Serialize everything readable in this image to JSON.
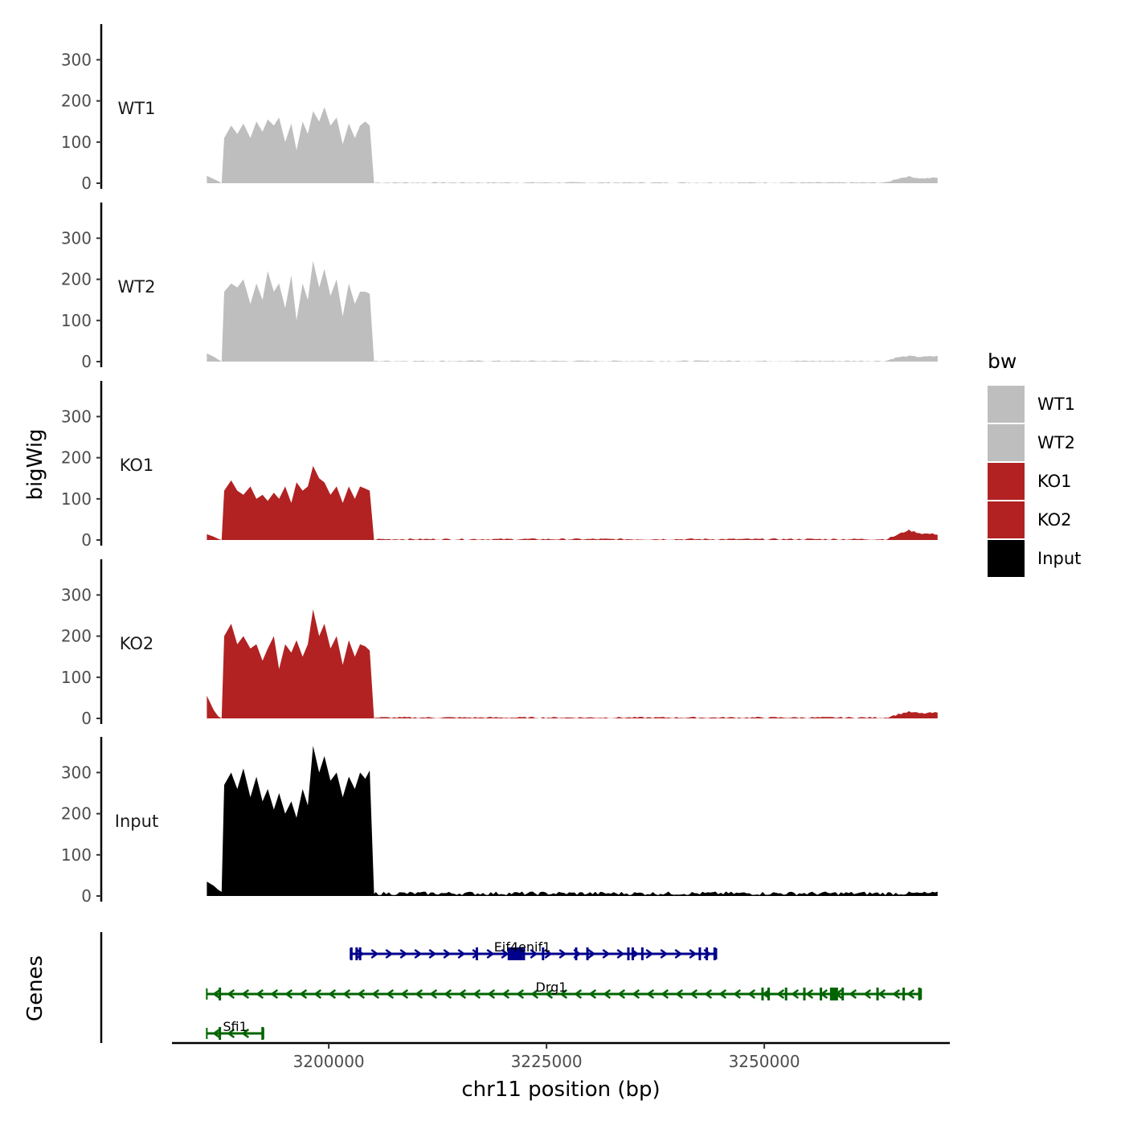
{
  "chart_data": {
    "type": "area",
    "title": "",
    "xlabel": "chr11 position (bp)",
    "ylabel_tracks": "bigWig",
    "ylabel_genes": "Genes",
    "xlim": [
      3182000,
      3271000
    ],
    "ylim": [
      0,
      380
    ],
    "y_ticks": [
      0,
      100,
      200,
      300
    ],
    "x_ticks": [
      3200000,
      3225000,
      3250000
    ],
    "x_tick_labels": [
      "3200000",
      "3225000",
      "3250000"
    ],
    "legend": {
      "title": "bw",
      "position": "right",
      "entries": [
        {
          "name": "WT1",
          "color": "#bebebe"
        },
        {
          "name": "WT2",
          "color": "#bebebe"
        },
        {
          "name": "KO1",
          "color": "#b22222"
        },
        {
          "name": "KO2",
          "color": "#b22222"
        },
        {
          "name": "Input",
          "color": "#000000"
        }
      ]
    },
    "series": [
      {
        "name": "WT1",
        "color": "#bebebe",
        "points": [
          [
            3186000,
            18
          ],
          [
            3186800,
            10
          ],
          [
            3187300,
            5
          ],
          [
            3187700,
            0
          ],
          [
            3188000,
            110
          ],
          [
            3188800,
            140
          ],
          [
            3189500,
            120
          ],
          [
            3190200,
            145
          ],
          [
            3191000,
            110
          ],
          [
            3191700,
            150
          ],
          [
            3192400,
            125
          ],
          [
            3193000,
            155
          ],
          [
            3193700,
            140
          ],
          [
            3194300,
            160
          ],
          [
            3195000,
            100
          ],
          [
            3195700,
            145
          ],
          [
            3196300,
            80
          ],
          [
            3197000,
            150
          ],
          [
            3197600,
            120
          ],
          [
            3198200,
            175
          ],
          [
            3198900,
            150
          ],
          [
            3199500,
            185
          ],
          [
            3200200,
            140
          ],
          [
            3200900,
            160
          ],
          [
            3201600,
            95
          ],
          [
            3202300,
            145
          ],
          [
            3203000,
            110
          ],
          [
            3203600,
            140
          ],
          [
            3204200,
            150
          ],
          [
            3204700,
            140
          ],
          [
            3205200,
            0
          ],
          [
            3270000,
            0
          ]
        ],
        "tail": [
          [
            3264000,
            0
          ],
          [
            3265000,
            8
          ],
          [
            3266500,
            15
          ],
          [
            3268000,
            10
          ],
          [
            3270000,
            12
          ]
        ],
        "noise": 3
      },
      {
        "name": "WT2",
        "color": "#bebebe",
        "points": [
          [
            3186000,
            20
          ],
          [
            3186800,
            12
          ],
          [
            3187300,
            5
          ],
          [
            3187700,
            0
          ],
          [
            3188000,
            170
          ],
          [
            3188800,
            190
          ],
          [
            3189500,
            180
          ],
          [
            3190200,
            200
          ],
          [
            3191000,
            140
          ],
          [
            3191700,
            190
          ],
          [
            3192400,
            150
          ],
          [
            3193000,
            220
          ],
          [
            3193700,
            170
          ],
          [
            3194300,
            190
          ],
          [
            3195000,
            130
          ],
          [
            3195700,
            210
          ],
          [
            3196300,
            100
          ],
          [
            3197000,
            190
          ],
          [
            3197600,
            150
          ],
          [
            3198200,
            245
          ],
          [
            3198900,
            180
          ],
          [
            3199500,
            225
          ],
          [
            3200200,
            160
          ],
          [
            3200900,
            200
          ],
          [
            3201600,
            110
          ],
          [
            3202300,
            190
          ],
          [
            3203000,
            140
          ],
          [
            3203600,
            170
          ],
          [
            3204200,
            170
          ],
          [
            3204700,
            165
          ],
          [
            3205200,
            0
          ],
          [
            3270000,
            0
          ]
        ],
        "tail": [
          [
            3264000,
            0
          ],
          [
            3265000,
            8
          ],
          [
            3266500,
            12
          ],
          [
            3268000,
            10
          ],
          [
            3270000,
            12
          ]
        ],
        "noise": 3
      },
      {
        "name": "KO1",
        "color": "#b22222",
        "points": [
          [
            3186000,
            14
          ],
          [
            3186800,
            8
          ],
          [
            3187300,
            3
          ],
          [
            3187700,
            0
          ],
          [
            3188000,
            120
          ],
          [
            3188800,
            145
          ],
          [
            3189500,
            120
          ],
          [
            3190200,
            110
          ],
          [
            3191000,
            130
          ],
          [
            3191700,
            100
          ],
          [
            3192400,
            110
          ],
          [
            3193000,
            95
          ],
          [
            3193700,
            115
          ],
          [
            3194300,
            100
          ],
          [
            3195000,
            130
          ],
          [
            3195700,
            90
          ],
          [
            3196300,
            140
          ],
          [
            3197000,
            120
          ],
          [
            3197600,
            130
          ],
          [
            3198200,
            180
          ],
          [
            3198900,
            150
          ],
          [
            3199500,
            140
          ],
          [
            3200200,
            110
          ],
          [
            3200900,
            130
          ],
          [
            3201600,
            90
          ],
          [
            3202300,
            130
          ],
          [
            3203000,
            100
          ],
          [
            3203600,
            130
          ],
          [
            3204200,
            125
          ],
          [
            3204700,
            120
          ],
          [
            3205200,
            0
          ],
          [
            3270000,
            0
          ]
        ],
        "tail": [
          [
            3264000,
            0
          ],
          [
            3265000,
            8
          ],
          [
            3266500,
            22
          ],
          [
            3268000,
            14
          ],
          [
            3270000,
            12
          ]
        ],
        "noise": 4
      },
      {
        "name": "KO2",
        "color": "#b22222",
        "points": [
          [
            3186000,
            55
          ],
          [
            3186800,
            20
          ],
          [
            3187300,
            5
          ],
          [
            3187700,
            0
          ],
          [
            3188000,
            200
          ],
          [
            3188800,
            230
          ],
          [
            3189500,
            180
          ],
          [
            3190200,
            200
          ],
          [
            3191000,
            170
          ],
          [
            3191700,
            180
          ],
          [
            3192400,
            140
          ],
          [
            3193000,
            170
          ],
          [
            3193700,
            200
          ],
          [
            3194300,
            120
          ],
          [
            3195000,
            180
          ],
          [
            3195700,
            160
          ],
          [
            3196300,
            190
          ],
          [
            3197000,
            150
          ],
          [
            3197600,
            180
          ],
          [
            3198200,
            265
          ],
          [
            3198900,
            200
          ],
          [
            3199500,
            230
          ],
          [
            3200200,
            170
          ],
          [
            3200900,
            200
          ],
          [
            3201600,
            130
          ],
          [
            3202300,
            190
          ],
          [
            3203000,
            150
          ],
          [
            3203600,
            180
          ],
          [
            3204200,
            175
          ],
          [
            3204700,
            165
          ],
          [
            3205200,
            0
          ],
          [
            3270000,
            0
          ]
        ],
        "tail": [
          [
            3264000,
            0
          ],
          [
            3265000,
            6
          ],
          [
            3266500,
            14
          ],
          [
            3268000,
            10
          ],
          [
            3270000,
            12
          ]
        ],
        "noise": 4
      },
      {
        "name": "Input",
        "color": "#000000",
        "points": [
          [
            3186000,
            35
          ],
          [
            3186800,
            25
          ],
          [
            3187300,
            15
          ],
          [
            3187700,
            10
          ],
          [
            3188000,
            270
          ],
          [
            3188800,
            300
          ],
          [
            3189500,
            260
          ],
          [
            3190200,
            310
          ],
          [
            3191000,
            240
          ],
          [
            3191700,
            290
          ],
          [
            3192400,
            230
          ],
          [
            3193000,
            260
          ],
          [
            3193700,
            210
          ],
          [
            3194300,
            250
          ],
          [
            3195000,
            200
          ],
          [
            3195700,
            230
          ],
          [
            3196300,
            190
          ],
          [
            3197000,
            260
          ],
          [
            3197600,
            220
          ],
          [
            3198200,
            365
          ],
          [
            3198900,
            300
          ],
          [
            3199500,
            340
          ],
          [
            3200200,
            280
          ],
          [
            3200900,
            300
          ],
          [
            3201600,
            240
          ],
          [
            3202300,
            290
          ],
          [
            3203000,
            260
          ],
          [
            3203600,
            300
          ],
          [
            3204200,
            285
          ],
          [
            3204700,
            305
          ],
          [
            3205200,
            5
          ],
          [
            3270000,
            5
          ]
        ],
        "tail": [],
        "noise": 9
      }
    ],
    "genes": [
      {
        "name": "Eif4enif1",
        "strand": "+",
        "start": 3202500,
        "end": 3244500,
        "color": "#00008b",
        "row": 1,
        "exons": [
          3202600,
          3203200,
          3203600,
          3217000,
          3221000,
          3221800,
          3222400,
          3224600,
          3228400,
          3229700,
          3234400,
          3234900,
          3236000,
          3242600,
          3243400,
          3244300
        ]
      },
      {
        "name": "Drg1",
        "strand": "-",
        "start": 3186000,
        "end": 3268000,
        "color": "#006400",
        "row": 2,
        "exons": [
          3187500,
          3249800,
          3250500,
          3252500,
          3254600,
          3256500,
          3258000,
          3259000,
          3263000,
          3266000,
          3267800
        ]
      },
      {
        "name": "Sfi1",
        "strand": "-",
        "start": 3186000,
        "end": 3192500,
        "color": "#006400",
        "row": 3,
        "exons": [
          3187500,
          3192400
        ]
      }
    ]
  }
}
